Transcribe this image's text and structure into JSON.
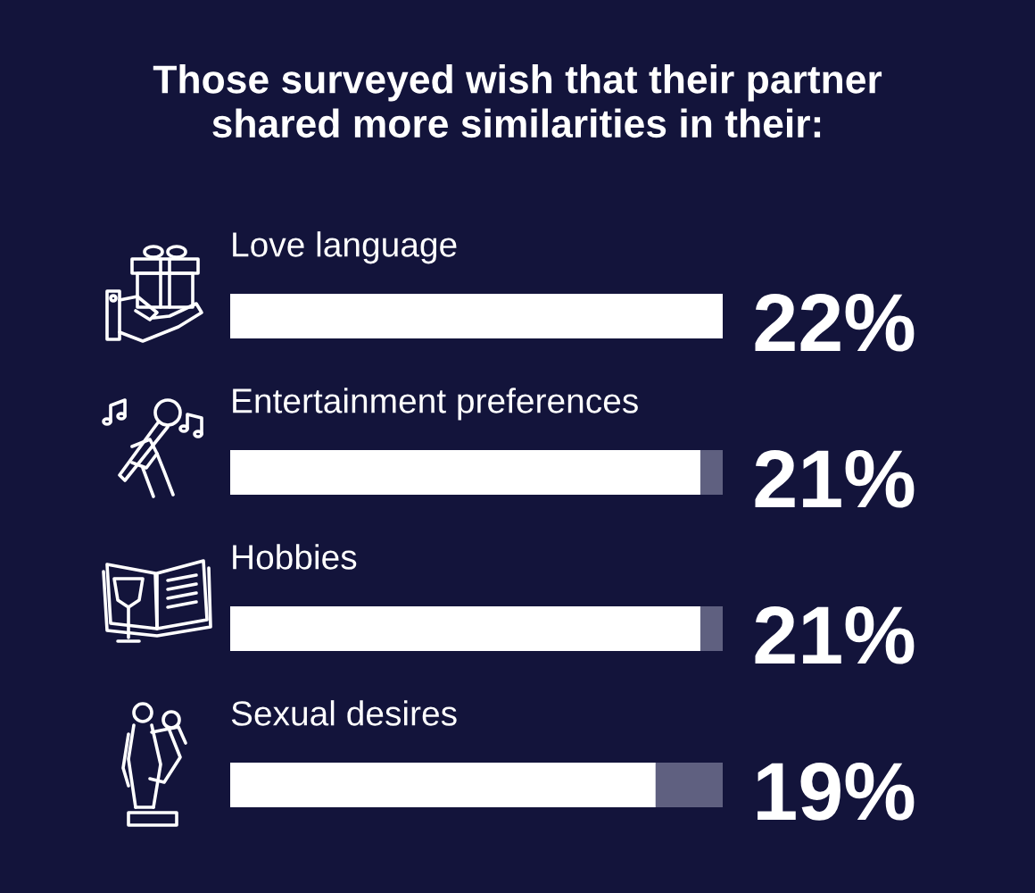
{
  "chart_data": {
    "type": "bar",
    "orientation": "horizontal",
    "title": "Those surveyed wish that their partner\nshared more similarities in their:",
    "categories": [
      "Love language",
      "Entertainment preferences",
      "Hobbies",
      "Sexual desires"
    ],
    "values": [
      22,
      21,
      21,
      19
    ],
    "color": "#ffffff",
    "value_labels": [
      "22%",
      "21%",
      "21%",
      "19%"
    ],
    "xlim": [
      0,
      22
    ]
  }
}
